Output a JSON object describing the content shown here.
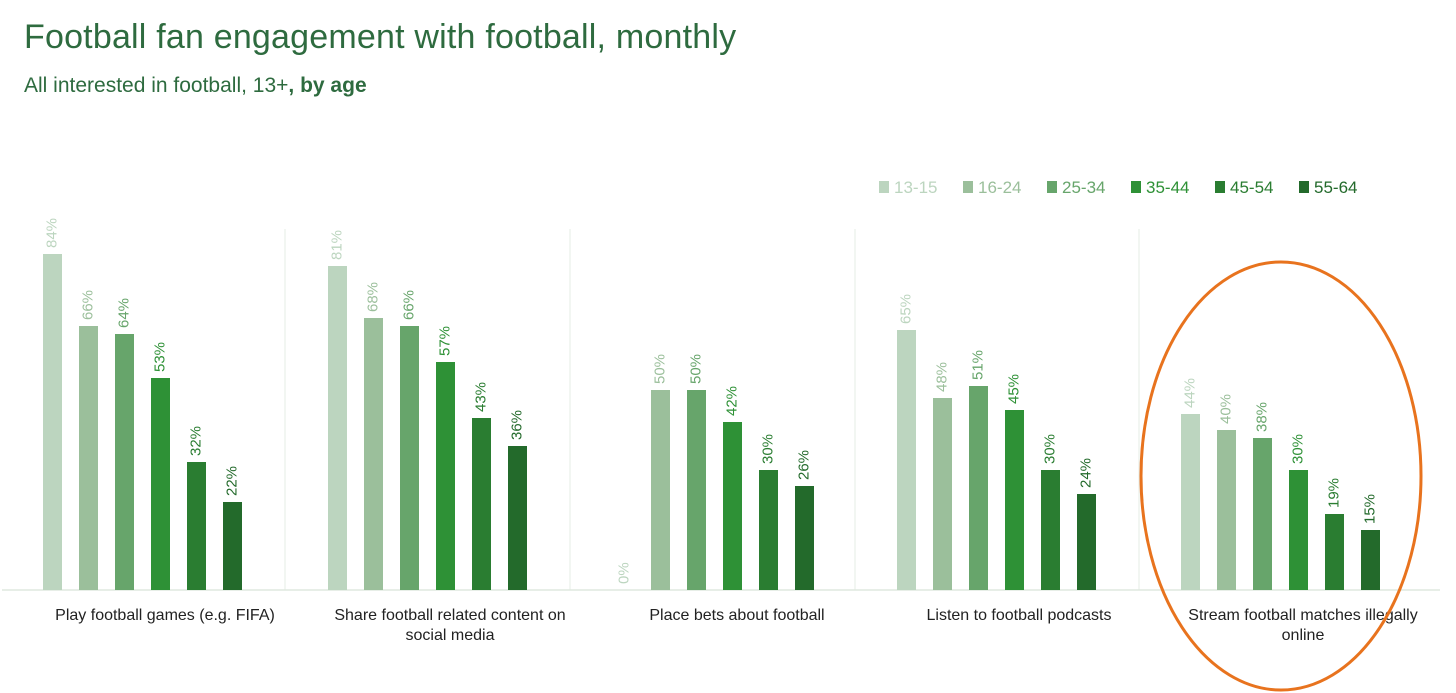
{
  "header": {
    "title": "Football fan engagement with football, monthly",
    "subtitle_plain": "All interested in football, 13+",
    "subtitle_bold": ", by age"
  },
  "chart_data": {
    "type": "bar",
    "categories": [
      "Play football games (e.g. FIFA)",
      "Share football related content on social media",
      "Place bets about football",
      "Listen to football podcasts",
      "Stream football matches illegally online"
    ],
    "category_lines": [
      [
        "Play football games (e.g. FIFA)"
      ],
      [
        "Share football related content on",
        "social media"
      ],
      [
        "Place bets about football"
      ],
      [
        "Listen to football podcasts"
      ],
      [
        "Stream football matches illegally",
        "online"
      ]
    ],
    "series": [
      {
        "name": "13-15",
        "color": "#bcd5bf",
        "values": [
          84,
          81,
          0,
          65,
          44
        ]
      },
      {
        "name": "16-24",
        "color": "#9bbf9b",
        "values": [
          66,
          68,
          50,
          48,
          40
        ]
      },
      {
        "name": "25-34",
        "color": "#67a56b",
        "values": [
          64,
          66,
          50,
          51,
          38
        ]
      },
      {
        "name": "35-44",
        "color": "#2e9136",
        "values": [
          53,
          57,
          42,
          45,
          30
        ]
      },
      {
        "name": "45-54",
        "color": "#2a7d31",
        "values": [
          32,
          43,
          30,
          30,
          19
        ]
      },
      {
        "name": "55-64",
        "color": "#236a2b",
        "values": [
          22,
          36,
          26,
          24,
          15
        ]
      }
    ],
    "value_suffix": "%",
    "ylim": [
      0,
      100
    ],
    "grid": false,
    "legend": "top-right",
    "annotation": {
      "shape": "ellipse",
      "color": "#e8731e",
      "highlights_category": "Stream football matches illegally online"
    }
  }
}
